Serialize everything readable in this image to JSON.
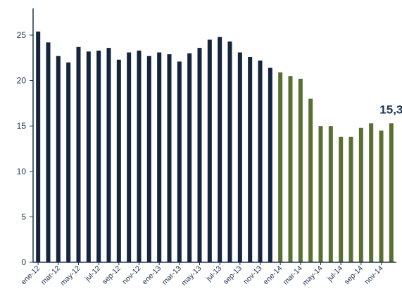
{
  "chart_data": {
    "type": "bar",
    "title": "",
    "xlabel": "",
    "ylabel": "",
    "ylim": [
      0,
      25
    ],
    "yticks": [
      0,
      5,
      10,
      15,
      20,
      25
    ],
    "grid": false,
    "categories": [
      "ene-12",
      "feb-12",
      "mar-12",
      "abr-12",
      "may-12",
      "jun-12",
      "jul-12",
      "ago-12",
      "sep-12",
      "oct-12",
      "nov-12",
      "dic-12",
      "ene-13",
      "feb-13",
      "mar-13",
      "abr-13",
      "may-13",
      "jun-13",
      "jul-13",
      "ago-13",
      "sep-13",
      "oct-13",
      "nov-13",
      "dic-13",
      "ene-14",
      "feb-14",
      "mar-14",
      "abr-14",
      "may-14",
      "jun-14",
      "jul-14",
      "ago-14",
      "sep-14",
      "oct-14",
      "nov-14",
      "dic-14"
    ],
    "tick_labels": [
      "ene-12",
      "mar-12",
      "may-12",
      "jul-12",
      "sep-12",
      "nov-12",
      "ene-13",
      "mar-13",
      "may-13",
      "jul-13",
      "sep-13",
      "nov-13",
      "ene-14",
      "mar-14",
      "may-14",
      "jul-14",
      "sep-14",
      "nov-14"
    ],
    "values": [
      25.4,
      24.2,
      22.7,
      22.0,
      23.7,
      23.2,
      23.3,
      23.6,
      22.3,
      23.1,
      23.3,
      22.7,
      23.1,
      22.9,
      22.1,
      23.0,
      23.6,
      24.5,
      24.8,
      24.3,
      23.1,
      22.6,
      22.2,
      21.4,
      20.9,
      20.5,
      20.2,
      18.0,
      15.0,
      15.0,
      13.8,
      13.8,
      14.8,
      15.3,
      14.5,
      15.3
    ],
    "series_colors": {
      "2012-2013": "#5a7032",
      "2014": "#15253d"
    },
    "color_split_index": 24,
    "data_labels": [
      {
        "index": 35,
        "text": "15,3"
      }
    ]
  }
}
